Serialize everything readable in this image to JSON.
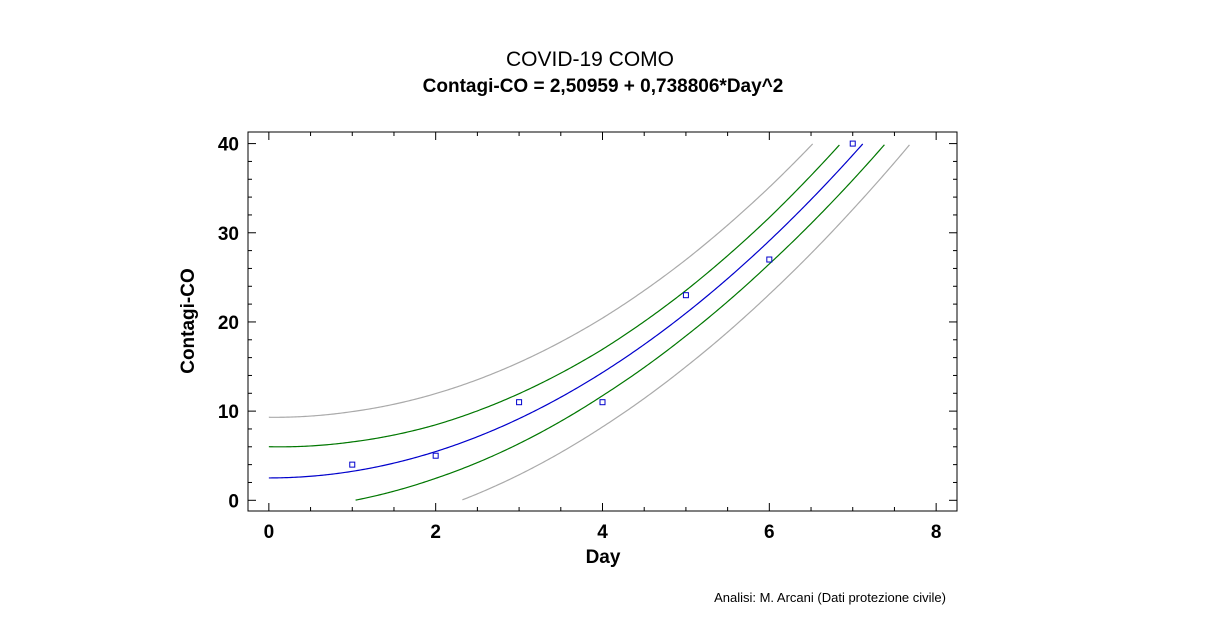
{
  "chart_data": {
    "type": "scatter",
    "title": "COVID-19 COMO",
    "subtitle": "Contagi-CO = 2,50959 + 0,738806*Day^2",
    "xlabel": "Day",
    "ylabel": "Contagi-CO",
    "xlim": [
      -0.25,
      8.25
    ],
    "ylim": [
      -1.2,
      41.3
    ],
    "x_ticks": [
      0,
      2,
      4,
      6,
      8
    ],
    "y_ticks": [
      0,
      10,
      20,
      30,
      40
    ],
    "x_minor_step": 0.5,
    "y_minor_step": 2,
    "grid": false,
    "legend": "none",
    "model": {
      "intercept": 2.50959,
      "coef_x2": 0.738806
    },
    "observed": {
      "x": [
        1,
        2,
        3,
        4,
        5,
        6,
        7
      ],
      "y": [
        4,
        5,
        11,
        11,
        23,
        27,
        40
      ]
    },
    "bands": {
      "confidence_halfwidth": [
        3.5,
        3.3,
        3.0,
        2.8,
        2.6,
        2.55,
        2.6,
        2.8,
        3.0
      ],
      "prediction_halfwidth": [
        6.8,
        6.7,
        6.5,
        6.3,
        6.1,
        6.0,
        6.0,
        6.1,
        6.3
      ],
      "x_knots": [
        0,
        1,
        2,
        3,
        4,
        5,
        6,
        7,
        8
      ]
    },
    "colors": {
      "fit": "#0000cc",
      "confidence": "#007700",
      "prediction": "#aaaaaa",
      "points": "#0000cc"
    }
  },
  "footer": {
    "credit": "Analisi: M. Arcani (Dati protezione civile)"
  }
}
